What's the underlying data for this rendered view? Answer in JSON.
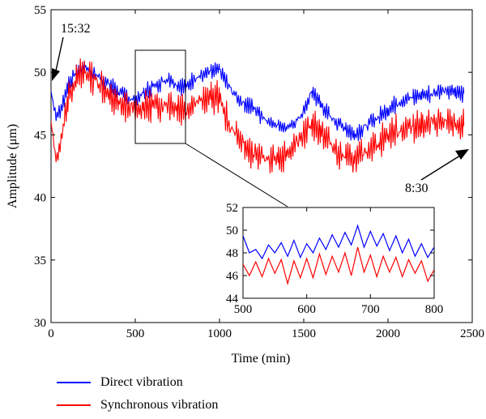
{
  "chart_data": {
    "type": "line",
    "xlabel": "Time (min)",
    "ylabel": "Amplitude (μm)",
    "xlim": [
      0,
      2500
    ],
    "ylim": [
      30,
      55
    ],
    "xticks": [
      "0",
      "500",
      "1000",
      "1500",
      "2000",
      "2500"
    ],
    "yticks": [
      "30",
      "35",
      "40",
      "45",
      "50",
      "55"
    ],
    "grid": false,
    "legend_position": "bottom-left, below plot",
    "colors": {
      "direct": "#0000ff",
      "synchronous": "#ff0000"
    },
    "series": [
      {
        "name": "Direct vibration",
        "x": [
          0,
          30,
          60,
          100,
          150,
          200,
          250,
          300,
          350,
          400,
          450,
          500,
          550,
          600,
          650,
          700,
          750,
          800,
          850,
          900,
          950,
          1000,
          1050,
          1100,
          1150,
          1200,
          1250,
          1300,
          1350,
          1400,
          1450,
          1500,
          1550,
          1600,
          1650,
          1700,
          1750,
          1800,
          1850,
          1900,
          1950,
          2000,
          2050,
          2100,
          2150,
          2200,
          2250,
          2300,
          2350,
          2400,
          2450
        ],
        "y": [
          48.5,
          46.5,
          47.0,
          49.0,
          50.0,
          50.5,
          50.0,
          49.5,
          49.0,
          48.5,
          48.0,
          47.8,
          48.3,
          48.8,
          49.2,
          49.5,
          49.0,
          48.8,
          49.5,
          49.8,
          50.0,
          50.2,
          49.0,
          48.0,
          47.5,
          47.2,
          46.5,
          46.0,
          45.8,
          45.5,
          46.0,
          46.8,
          48.5,
          47.5,
          46.5,
          46.0,
          45.5,
          45.0,
          45.5,
          46.0,
          46.5,
          47.0,
          47.5,
          47.8,
          48.0,
          48.2,
          48.3,
          48.5,
          48.5,
          48.4,
          48.3
        ]
      },
      {
        "name": "Synchronous vibration",
        "x": [
          0,
          30,
          60,
          100,
          150,
          200,
          250,
          300,
          350,
          400,
          450,
          500,
          550,
          600,
          650,
          700,
          750,
          800,
          850,
          900,
          950,
          1000,
          1050,
          1100,
          1150,
          1200,
          1250,
          1300,
          1350,
          1400,
          1450,
          1500,
          1550,
          1600,
          1650,
          1700,
          1750,
          1800,
          1850,
          1900,
          1950,
          2000,
          2050,
          2100,
          2150,
          2200,
          2250,
          2300,
          2350,
          2400,
          2450
        ],
        "y": [
          46.0,
          43.0,
          44.5,
          48.0,
          49.5,
          50.0,
          49.5,
          49.0,
          48.0,
          47.5,
          47.2,
          47.0,
          47.2,
          47.3,
          47.4,
          47.5,
          47.2,
          47.0,
          47.5,
          47.8,
          48.0,
          48.0,
          46.0,
          45.0,
          44.0,
          43.5,
          43.2,
          43.0,
          43.2,
          43.5,
          44.2,
          45.0,
          46.0,
          45.2,
          44.5,
          43.5,
          43.2,
          43.0,
          43.5,
          44.0,
          44.5,
          45.0,
          45.3,
          45.5,
          45.7,
          45.8,
          45.9,
          46.0,
          46.0,
          45.8,
          45.7
        ]
      }
    ],
    "annotations": [
      {
        "text": "15:32",
        "x": 0,
        "y": 49.2
      },
      {
        "text": "8:30",
        "x": 2470,
        "y": 44.5
      }
    ],
    "inset": {
      "xlim": [
        500,
        800
      ],
      "ylim": [
        44,
        52
      ],
      "xticks": [
        "500",
        "600",
        "700",
        "800"
      ],
      "yticks": [
        "44",
        "46",
        "48",
        "50",
        "52"
      ],
      "direct": {
        "x": [
          500,
          510,
          520,
          530,
          540,
          550,
          560,
          570,
          580,
          590,
          600,
          610,
          620,
          630,
          640,
          650,
          660,
          670,
          680,
          690,
          700,
          710,
          720,
          730,
          740,
          750,
          760,
          770,
          780,
          790,
          800
        ],
        "y": [
          49.5,
          48.0,
          48.3,
          47.5,
          48.7,
          48.0,
          48.9,
          47.7,
          49.1,
          47.6,
          48.8,
          48.0,
          49.3,
          48.3,
          49.6,
          48.5,
          49.8,
          48.7,
          50.4,
          48.5,
          49.9,
          48.6,
          49.7,
          48.2,
          49.5,
          48.0,
          49.2,
          47.7,
          48.8,
          47.6,
          48.5
        ]
      },
      "synchronous": {
        "x": [
          500,
          510,
          520,
          530,
          540,
          550,
          560,
          570,
          580,
          590,
          600,
          610,
          620,
          630,
          640,
          650,
          660,
          670,
          680,
          690,
          700,
          710,
          720,
          730,
          740,
          750,
          760,
          770,
          780,
          790,
          800
        ],
        "y": [
          47.0,
          46.0,
          47.2,
          45.9,
          47.5,
          46.2,
          47.4,
          45.3,
          47.3,
          45.8,
          47.5,
          45.8,
          47.9,
          46.1,
          47.7,
          46.3,
          48.0,
          46.0,
          48.5,
          46.3,
          47.8,
          45.9,
          47.7,
          46.3,
          47.6,
          45.9,
          47.4,
          46.2,
          47.3,
          45.5,
          46.5
        ]
      }
    }
  }
}
